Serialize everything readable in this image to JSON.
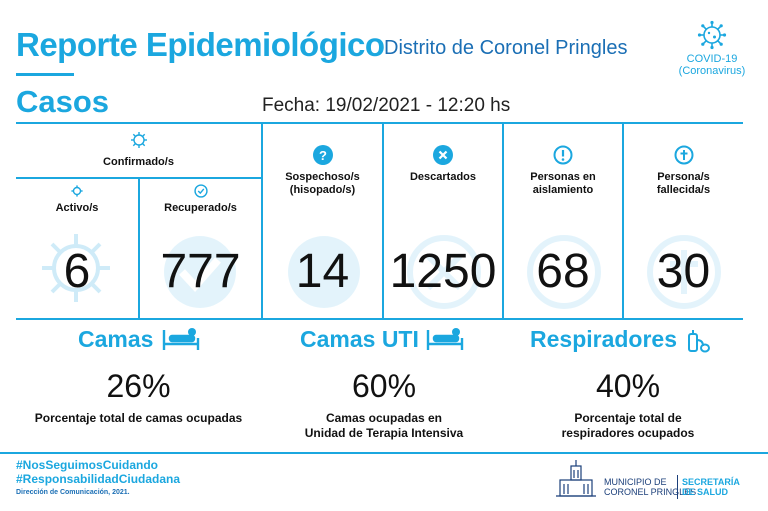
{
  "header": {
    "title": "Reporte Epidemiológico",
    "subtitle": "Distrito de Coronel Pringles",
    "covid_label": "COVID-19",
    "covid_sublabel": "(Coronavirus)"
  },
  "casos": {
    "title": "Casos",
    "fecha": "Fecha: 19/02/2021 - 12:20 hs"
  },
  "stats": {
    "confirmados_label": "Confirmado/s",
    "activos_label": "Activo/s",
    "activos_value": "6",
    "recuperados_label": "Recuperado/s",
    "recuperados_value": "777",
    "sospechosos_label_1": "Sospechoso/s",
    "sospechosos_label_2": "(hisopado/s)",
    "sospechosos_value": "14",
    "descartados_label": "Descartados",
    "descartados_value": "1250",
    "aislamiento_label_1": "Personas en",
    "aislamiento_label_2": "aislamiento",
    "aislamiento_value": "68",
    "fallecidos_label_1": "Persona/s",
    "fallecidos_label_2": "fallecida/s",
    "fallecidos_value": "30"
  },
  "camas": {
    "title": "Camas",
    "pct": "26%",
    "desc": "Porcentaje total de camas ocupadas"
  },
  "camas_uti": {
    "title": "Camas UTI",
    "pct": "60%",
    "desc_1": "Camas ocupadas en",
    "desc_2": "Unidad de Terapia Intensiva"
  },
  "respiradores": {
    "title": "Respiradores",
    "pct": "40%",
    "desc_1": "Porcentaje total de",
    "desc_2": "respiradores ocupados"
  },
  "footer": {
    "hashtag_1": "#NosSeguimosCuidando",
    "hashtag_2": "#ResponsabilidadCiudadana",
    "direccion": "Dirección de Comunicación, 2021.",
    "muni_1": "MUNICIPIO DE",
    "muni_2": "CORONEL PRINGLES",
    "salud_1": "SECRETARÍA",
    "salud_2": "DE SALUD"
  },
  "colors": {
    "accent": "#1ba7df",
    "dark_blue": "#1b6fb5"
  },
  "icons": [
    "virus-icon",
    "check-icon",
    "question-icon",
    "x-icon",
    "exclamation-icon",
    "cross-icon",
    "bed-icon",
    "respirator-icon",
    "building-icon"
  ]
}
